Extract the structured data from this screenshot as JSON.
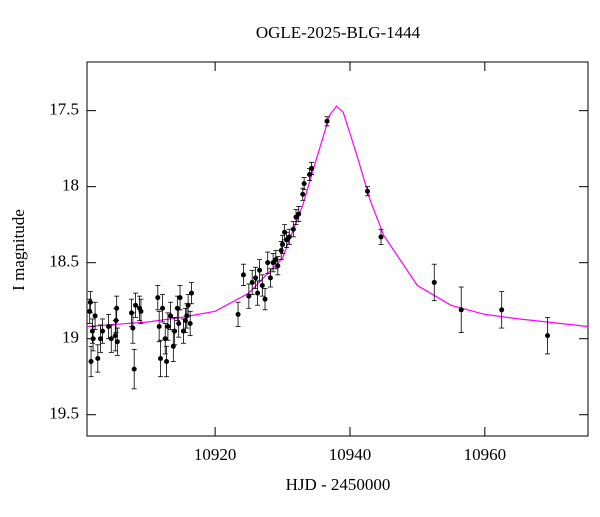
{
  "chart_data": {
    "type": "scatter",
    "title": "OGLE-2025-BLG-1444",
    "xlabel": "HJD - 2450000",
    "ylabel": "I magnitude",
    "xlim": [
      10901,
      10975.3
    ],
    "xticks": [
      10920,
      10940,
      10960
    ],
    "ylim": [
      19.64,
      17.18
    ],
    "yticks": [
      17.5,
      18,
      18.5,
      19,
      19.5
    ],
    "y_inverted": true,
    "series": [
      {
        "type": "scatter",
        "color": "#000000",
        "x": [
          10901.4,
          10901.5,
          10901.6,
          10901.8,
          10901.9,
          10902.2,
          10902.6,
          10903.0,
          10903.3,
          10904.2,
          10904.6,
          10905.2,
          10905.3,
          10905.4,
          10905.5,
          10907.6,
          10907.8,
          10908.0,
          10908.2,
          10908.8,
          10909.0,
          10911.5,
          10911.7,
          10911.9,
          10912.2,
          10912.6,
          10912.8,
          10913.0,
          10913.4,
          10913.8,
          10914.0,
          10914.4,
          10914.6,
          10914.8,
          10915.3,
          10915.6,
          10915.8,
          10916.0,
          10916.3,
          10916.5,
          10923.4,
          10924.2,
          10925.0,
          10925.5,
          10926.0,
          10926.3,
          10926.6,
          10927.0,
          10927.4,
          10927.8,
          10928.2,
          10928.6,
          10929.0,
          10929.3,
          10929.8,
          10930.0,
          10930.3,
          10930.6,
          10931.0,
          10931.6,
          10932.0,
          10932.4,
          10933.0,
          10933.2,
          10934.0,
          10934.3,
          10936.6,
          10942.6,
          10944.6,
          10952.5,
          10956.5,
          10962.5,
          10969.3
        ],
        "values": [
          18.82,
          18.76,
          19.15,
          18.95,
          19.0,
          18.85,
          19.13,
          19.0,
          18.95,
          18.92,
          19.0,
          18.98,
          18.88,
          18.8,
          19.02,
          18.83,
          18.93,
          19.2,
          18.78,
          18.8,
          18.82,
          18.73,
          18.92,
          19.13,
          18.8,
          19.0,
          19.15,
          18.92,
          18.85,
          19.05,
          18.95,
          18.8,
          18.9,
          18.73,
          18.95,
          18.88,
          18.85,
          18.78,
          18.9,
          18.7,
          18.84,
          18.58,
          18.72,
          18.63,
          18.6,
          18.7,
          18.55,
          18.65,
          18.74,
          18.5,
          18.6,
          18.5,
          18.48,
          18.52,
          18.42,
          18.38,
          18.3,
          18.35,
          18.33,
          18.28,
          18.2,
          18.18,
          18.05,
          17.98,
          17.92,
          17.88,
          17.57,
          18.03,
          18.33,
          18.63,
          18.81,
          18.81,
          18.98
        ],
        "errors": [
          0.08,
          0.07,
          0.1,
          0.08,
          0.08,
          0.09,
          0.09,
          0.09,
          0.08,
          0.08,
          0.09,
          0.1,
          0.08,
          0.08,
          0.09,
          0.09,
          0.1,
          0.13,
          0.08,
          0.08,
          0.08,
          0.08,
          0.1,
          0.12,
          0.09,
          0.1,
          0.1,
          0.09,
          0.09,
          0.1,
          0.09,
          0.08,
          0.09,
          0.08,
          0.08,
          0.08,
          0.08,
          0.07,
          0.08,
          0.07,
          0.08,
          0.07,
          0.08,
          0.08,
          0.07,
          0.08,
          0.07,
          0.07,
          0.07,
          0.07,
          0.06,
          0.06,
          0.06,
          0.06,
          0.06,
          0.06,
          0.05,
          0.05,
          0.05,
          0.05,
          0.05,
          0.05,
          0.04,
          0.04,
          0.04,
          0.04,
          0.03,
          0.03,
          0.05,
          0.12,
          0.15,
          0.12,
          0.12
        ]
      },
      {
        "type": "line",
        "color": "#ff00ff",
        "x": [
          10901,
          10910,
          10915,
          10920,
          10925,
          10930,
          10933,
          10935,
          10937,
          10938,
          10939,
          10941,
          10943,
          10945,
          10950,
          10955,
          10960,
          10965,
          10975.3
        ],
        "values": [
          18.92,
          18.89,
          18.86,
          18.82,
          18.7,
          18.47,
          18.12,
          17.82,
          17.53,
          17.47,
          17.51,
          17.79,
          18.09,
          18.32,
          18.65,
          18.78,
          18.84,
          18.87,
          18.92
        ]
      }
    ]
  }
}
